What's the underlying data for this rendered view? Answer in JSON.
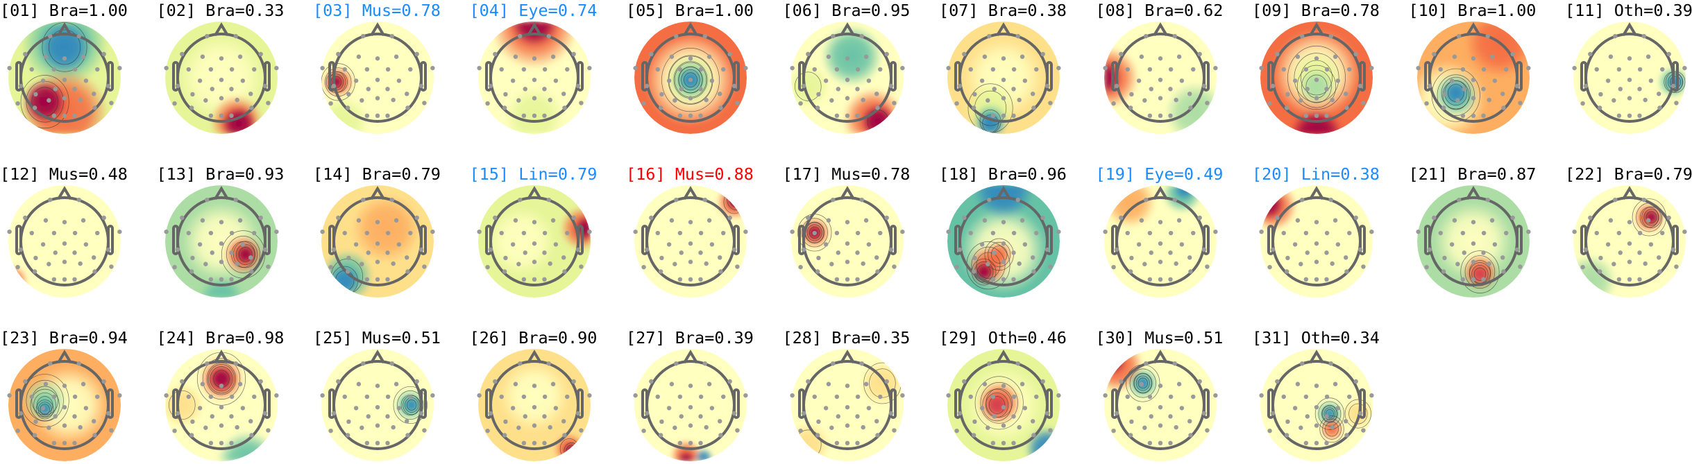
{
  "colors": {
    "brain": "#000000",
    "flag_blue": "#1a8cff",
    "flag_red": "#ff0000"
  },
  "colormap": "spectral-reversed (blue negative, red positive)",
  "components": [
    {
      "text": "[01] Bra=1.00",
      "color": "#000000"
    },
    {
      "text": "[02] Bra=0.33",
      "color": "#000000"
    },
    {
      "text": "[03] Mus=0.78",
      "color": "#1a8cff"
    },
    {
      "text": "[04] Eye=0.74",
      "color": "#1a8cff"
    },
    {
      "text": "[05] Bra=1.00",
      "color": "#000000"
    },
    {
      "text": "[06] Bra=0.95",
      "color": "#000000"
    },
    {
      "text": "[07] Bra=0.38",
      "color": "#000000"
    },
    {
      "text": "[08] Bra=0.62",
      "color": "#000000"
    },
    {
      "text": "[09] Bra=0.78",
      "color": "#000000"
    },
    {
      "text": "[10] Bra=1.00",
      "color": "#000000"
    },
    {
      "text": "[11] Oth=0.39",
      "color": "#000000"
    },
    {
      "text": "[12] Mus=0.48",
      "color": "#000000"
    },
    {
      "text": "[13] Bra=0.93",
      "color": "#000000"
    },
    {
      "text": "[14] Bra=0.79",
      "color": "#000000"
    },
    {
      "text": "[15] Lin=0.79",
      "color": "#1a8cff"
    },
    {
      "text": "[16] Mus=0.88",
      "color": "#ff0000"
    },
    {
      "text": "[17] Mus=0.78",
      "color": "#000000"
    },
    {
      "text": "[18] Bra=0.96",
      "color": "#000000"
    },
    {
      "text": "[19] Eye=0.49",
      "color": "#1a8cff"
    },
    {
      "text": "[20] Lin=0.38",
      "color": "#1a8cff"
    },
    {
      "text": "[21] Bra=0.87",
      "color": "#000000"
    },
    {
      "text": "[22] Bra=0.79",
      "color": "#000000"
    },
    {
      "text": "[23] Bra=0.94",
      "color": "#000000"
    },
    {
      "text": "[24] Bra=0.98",
      "color": "#000000"
    },
    {
      "text": "[25] Mus=0.51",
      "color": "#000000"
    },
    {
      "text": "[26] Bra=0.90",
      "color": "#000000"
    },
    {
      "text": "[27] Bra=0.39",
      "color": "#000000"
    },
    {
      "text": "[28] Bra=0.35",
      "color": "#000000"
    },
    {
      "text": "[29] Oth=0.46",
      "color": "#000000"
    },
    {
      "text": "[30] Mus=0.51",
      "color": "#000000"
    },
    {
      "text": "[31] Oth=0.34",
      "color": "#000000"
    }
  ]
}
